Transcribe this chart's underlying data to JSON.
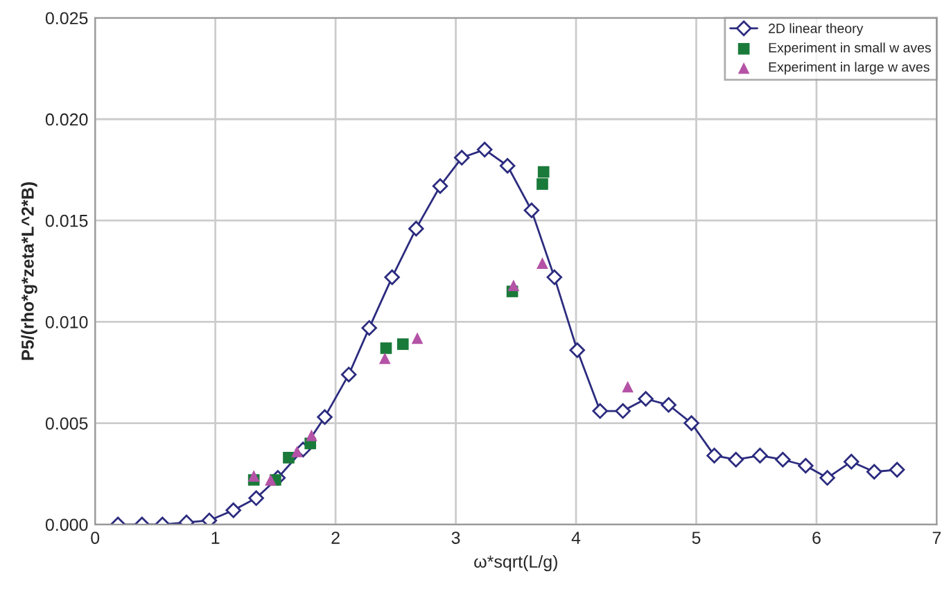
{
  "chart_data": {
    "type": "line",
    "xlabel": "ω*sqrt(L/g)",
    "ylabel": "P5/(rho*g*zeta*L^2*B)",
    "xlim": [
      0,
      7
    ],
    "xticks": [
      0,
      1,
      2,
      3,
      4,
      5,
      6,
      7
    ],
    "ylim": [
      0,
      0.025
    ],
    "yticks": [
      {
        "value": 0,
        "label": "0.000"
      },
      {
        "value": 0.005,
        "label": "0.005"
      },
      {
        "value": 0.01,
        "label": "0.010"
      },
      {
        "value": 0.015,
        "label": "0.015"
      },
      {
        "value": 0.02,
        "label": "0.020"
      },
      {
        "value": 0.025,
        "label": "0.025"
      }
    ],
    "grid": true,
    "legend": "top right",
    "series": [
      {
        "name": "2D linear theory",
        "marker": "diamond",
        "color": "#2b2b7f",
        "x": [
          0.19,
          0.39,
          0.56,
          0.76,
          0.95,
          1.15,
          1.34,
          1.52,
          1.73,
          1.91,
          2.11,
          2.28,
          2.47,
          2.67,
          2.87,
          3.05,
          3.24,
          3.43,
          3.63,
          3.82,
          4.01,
          4.2,
          4.39,
          4.58,
          4.77,
          4.96,
          5.15,
          5.33,
          5.53,
          5.72,
          5.91,
          6.09,
          6.29,
          6.48,
          6.67
        ],
        "values": [
          0.0,
          0.0,
          0.0,
          0.0001,
          0.0002,
          0.0007,
          0.0013,
          0.0023,
          0.0037,
          0.0053,
          0.0074,
          0.0097,
          0.0122,
          0.0146,
          0.0167,
          0.0181,
          0.0185,
          0.0177,
          0.0155,
          0.0122,
          0.0086,
          0.0056,
          0.0056,
          0.0062,
          0.0059,
          0.005,
          0.0034,
          0.0032,
          0.0034,
          0.0032,
          0.0029,
          0.0023,
          0.0031,
          0.0026,
          0.0027
        ]
      },
      {
        "name": "Experiment in small w aves",
        "type": "scatter",
        "marker": "square",
        "color": "#1a7a3a",
        "x": [
          1.32,
          1.5,
          1.61,
          1.79,
          2.42,
          2.56,
          3.47,
          3.72,
          3.73
        ],
        "values": [
          0.0022,
          0.0022,
          0.0033,
          0.004,
          0.0087,
          0.0089,
          0.0115,
          0.0168,
          0.0174
        ]
      },
      {
        "name": "Experiment in large w aves",
        "type": "scatter",
        "marker": "triangle",
        "color": "#b452a6",
        "x": [
          1.32,
          1.46,
          1.68,
          1.8,
          2.41,
          2.68,
          3.48,
          3.72,
          4.43
        ],
        "values": [
          0.0024,
          0.0022,
          0.0036,
          0.0044,
          0.0082,
          0.0092,
          0.0118,
          0.0129,
          0.0068
        ]
      }
    ]
  }
}
